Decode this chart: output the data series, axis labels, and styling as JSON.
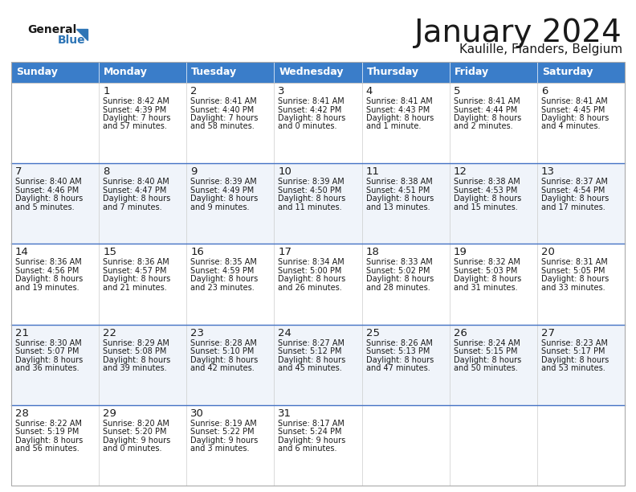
{
  "title": "January 2024",
  "subtitle": "Kaulille, Flanders, Belgium",
  "header_color": "#3A7DC9",
  "header_text_color": "#FFFFFF",
  "days_of_week": [
    "Sunday",
    "Monday",
    "Tuesday",
    "Wednesday",
    "Thursday",
    "Friday",
    "Saturday"
  ],
  "bg_color": "#FFFFFF",
  "row_odd_color": "#F0F4FA",
  "row_even_color": "#FFFFFF",
  "cell_text_color": "#1A1A1A",
  "row_divider_color": "#4472C4",
  "logo_text_color": "#1A1A1A",
  "logo_blue_color": "#2E75B6",
  "calendar_data": [
    [
      {
        "day": "",
        "sunrise": "",
        "sunset": "",
        "daylight": ""
      },
      {
        "day": "1",
        "sunrise": "8:42 AM",
        "sunset": "4:39 PM",
        "daylight": "7 hours\nand 57 minutes."
      },
      {
        "day": "2",
        "sunrise": "8:41 AM",
        "sunset": "4:40 PM",
        "daylight": "7 hours\nand 58 minutes."
      },
      {
        "day": "3",
        "sunrise": "8:41 AM",
        "sunset": "4:42 PM",
        "daylight": "8 hours\nand 0 minutes."
      },
      {
        "day": "4",
        "sunrise": "8:41 AM",
        "sunset": "4:43 PM",
        "daylight": "8 hours\nand 1 minute."
      },
      {
        "day": "5",
        "sunrise": "8:41 AM",
        "sunset": "4:44 PM",
        "daylight": "8 hours\nand 2 minutes."
      },
      {
        "day": "6",
        "sunrise": "8:41 AM",
        "sunset": "4:45 PM",
        "daylight": "8 hours\nand 4 minutes."
      }
    ],
    [
      {
        "day": "7",
        "sunrise": "8:40 AM",
        "sunset": "4:46 PM",
        "daylight": "8 hours\nand 5 minutes."
      },
      {
        "day": "8",
        "sunrise": "8:40 AM",
        "sunset": "4:47 PM",
        "daylight": "8 hours\nand 7 minutes."
      },
      {
        "day": "9",
        "sunrise": "8:39 AM",
        "sunset": "4:49 PM",
        "daylight": "8 hours\nand 9 minutes."
      },
      {
        "day": "10",
        "sunrise": "8:39 AM",
        "sunset": "4:50 PM",
        "daylight": "8 hours\nand 11 minutes."
      },
      {
        "day": "11",
        "sunrise": "8:38 AM",
        "sunset": "4:51 PM",
        "daylight": "8 hours\nand 13 minutes."
      },
      {
        "day": "12",
        "sunrise": "8:38 AM",
        "sunset": "4:53 PM",
        "daylight": "8 hours\nand 15 minutes."
      },
      {
        "day": "13",
        "sunrise": "8:37 AM",
        "sunset": "4:54 PM",
        "daylight": "8 hours\nand 17 minutes."
      }
    ],
    [
      {
        "day": "14",
        "sunrise": "8:36 AM",
        "sunset": "4:56 PM",
        "daylight": "8 hours\nand 19 minutes."
      },
      {
        "day": "15",
        "sunrise": "8:36 AM",
        "sunset": "4:57 PM",
        "daylight": "8 hours\nand 21 minutes."
      },
      {
        "day": "16",
        "sunrise": "8:35 AM",
        "sunset": "4:59 PM",
        "daylight": "8 hours\nand 23 minutes."
      },
      {
        "day": "17",
        "sunrise": "8:34 AM",
        "sunset": "5:00 PM",
        "daylight": "8 hours\nand 26 minutes."
      },
      {
        "day": "18",
        "sunrise": "8:33 AM",
        "sunset": "5:02 PM",
        "daylight": "8 hours\nand 28 minutes."
      },
      {
        "day": "19",
        "sunrise": "8:32 AM",
        "sunset": "5:03 PM",
        "daylight": "8 hours\nand 31 minutes."
      },
      {
        "day": "20",
        "sunrise": "8:31 AM",
        "sunset": "5:05 PM",
        "daylight": "8 hours\nand 33 minutes."
      }
    ],
    [
      {
        "day": "21",
        "sunrise": "8:30 AM",
        "sunset": "5:07 PM",
        "daylight": "8 hours\nand 36 minutes."
      },
      {
        "day": "22",
        "sunrise": "8:29 AM",
        "sunset": "5:08 PM",
        "daylight": "8 hours\nand 39 minutes."
      },
      {
        "day": "23",
        "sunrise": "8:28 AM",
        "sunset": "5:10 PM",
        "daylight": "8 hours\nand 42 minutes."
      },
      {
        "day": "24",
        "sunrise": "8:27 AM",
        "sunset": "5:12 PM",
        "daylight": "8 hours\nand 45 minutes."
      },
      {
        "day": "25",
        "sunrise": "8:26 AM",
        "sunset": "5:13 PM",
        "daylight": "8 hours\nand 47 minutes."
      },
      {
        "day": "26",
        "sunrise": "8:24 AM",
        "sunset": "5:15 PM",
        "daylight": "8 hours\nand 50 minutes."
      },
      {
        "day": "27",
        "sunrise": "8:23 AM",
        "sunset": "5:17 PM",
        "daylight": "8 hours\nand 53 minutes."
      }
    ],
    [
      {
        "day": "28",
        "sunrise": "8:22 AM",
        "sunset": "5:19 PM",
        "daylight": "8 hours\nand 56 minutes."
      },
      {
        "day": "29",
        "sunrise": "8:20 AM",
        "sunset": "5:20 PM",
        "daylight": "9 hours\nand 0 minutes."
      },
      {
        "day": "30",
        "sunrise": "8:19 AM",
        "sunset": "5:22 PM",
        "daylight": "9 hours\nand 3 minutes."
      },
      {
        "day": "31",
        "sunrise": "8:17 AM",
        "sunset": "5:24 PM",
        "daylight": "9 hours\nand 6 minutes."
      },
      {
        "day": "",
        "sunrise": "",
        "sunset": "",
        "daylight": ""
      },
      {
        "day": "",
        "sunrise": "",
        "sunset": "",
        "daylight": ""
      },
      {
        "day": "",
        "sunrise": "",
        "sunset": "",
        "daylight": ""
      }
    ]
  ]
}
